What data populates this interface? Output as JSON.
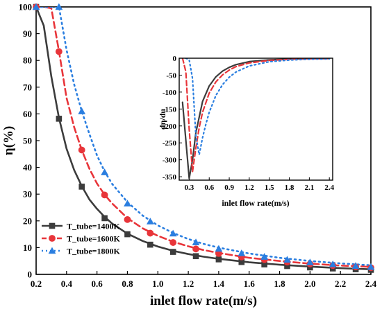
{
  "chart_data": [
    {
      "type": "line",
      "xlabel": "inlet flow rate(m/s)",
      "ylabel": "η(%)",
      "xlim": [
        0.2,
        2.4
      ],
      "ylim": [
        0,
        100
      ],
      "xticks": [
        "0.2",
        "0.4",
        "0.6",
        "0.8",
        "1.0",
        "1.2",
        "1.4",
        "1.6",
        "1.8",
        "2.0",
        "2.2",
        "2.4"
      ],
      "yticks": [
        "0",
        "10",
        "20",
        "30",
        "40",
        "50",
        "60",
        "70",
        "80",
        "90",
        "100"
      ],
      "legend_position": "bottom-left",
      "series": [
        {
          "name": "T_tube=1400K",
          "color": "#3c3c3c",
          "line_style": "solid",
          "marker": "square",
          "x": [
            0.2,
            0.25,
            0.3,
            0.35,
            0.4,
            0.45,
            0.5,
            0.55,
            0.6,
            0.65,
            0.7,
            0.8,
            0.9,
            1.0,
            1.1,
            1.2,
            1.3,
            1.4,
            1.6,
            1.8,
            2.0,
            2.2,
            2.4
          ],
          "y": [
            100,
            93,
            74,
            58.5,
            47,
            39,
            33,
            28,
            24.5,
            21.5,
            19,
            15.2,
            12.5,
            10.4,
            8.8,
            7.6,
            6.6,
            5.8,
            4.5,
            3.6,
            2.9,
            2.3,
            1.9
          ],
          "marker_x": [
            0.2,
            0.35,
            0.5,
            0.65,
            0.8,
            0.95,
            1.1,
            1.25,
            1.4,
            1.55,
            1.7,
            1.85,
            2.0,
            2.15,
            2.3,
            2.4
          ],
          "marker_y": [
            100,
            58.2,
            32.8,
            21,
            15,
            11.1,
            8.4,
            6.8,
            5.6,
            4.6,
            3.7,
            3.1,
            2.6,
            2.2,
            1.9,
            1.7
          ]
        },
        {
          "name": "T_tube=1600K",
          "color": "#e8353a",
          "line_style": "dashed",
          "marker": "circle",
          "x": [
            0.2,
            0.25,
            0.3,
            0.35,
            0.4,
            0.45,
            0.5,
            0.55,
            0.6,
            0.65,
            0.7,
            0.8,
            0.9,
            1.0,
            1.1,
            1.2,
            1.3,
            1.4,
            1.6,
            1.8,
            2.0,
            2.2,
            2.4
          ],
          "y": [
            100,
            100,
            99.5,
            83.5,
            66,
            55,
            46.5,
            39.5,
            34,
            29.8,
            26.5,
            21,
            17.2,
            14.4,
            12.2,
            10.5,
            9.1,
            8,
            6.2,
            5,
            4,
            3.3,
            2.8
          ],
          "marker_x": [
            0.2,
            0.35,
            0.5,
            0.65,
            0.8,
            0.95,
            1.1,
            1.25,
            1.4,
            1.55,
            1.7,
            1.85,
            2.0,
            2.15,
            2.3,
            2.4
          ],
          "marker_y": [
            100,
            83.3,
            46.5,
            29.7,
            20.5,
            15.4,
            11.9,
            9.5,
            7.8,
            6.5,
            5.5,
            4.6,
            3.9,
            3.3,
            2.8,
            2.5
          ]
        },
        {
          "name": "T_tube=1800K",
          "color": "#2a7ee0",
          "line_style": "dotted",
          "marker": "triangle",
          "x": [
            0.2,
            0.25,
            0.3,
            0.35,
            0.4,
            0.45,
            0.5,
            0.55,
            0.6,
            0.65,
            0.7,
            0.8,
            0.9,
            1.0,
            1.1,
            1.2,
            1.3,
            1.4,
            1.6,
            1.8,
            2.0,
            2.2,
            2.4
          ],
          "y": [
            100,
            100,
            100,
            100,
            84,
            71,
            61,
            52.5,
            44.5,
            38.5,
            33.8,
            27,
            22,
            18.3,
            15.5,
            13.2,
            11.4,
            10,
            7.8,
            6.2,
            5,
            4.1,
            3.4
          ],
          "marker_x": [
            0.2,
            0.35,
            0.5,
            0.65,
            0.8,
            0.95,
            1.1,
            1.25,
            1.4,
            1.55,
            1.7,
            1.85,
            2.0,
            2.15,
            2.3,
            2.4
          ],
          "marker_y": [
            100,
            100,
            61,
            38.2,
            26.5,
            19.8,
            15.3,
            12,
            9.6,
            7.9,
            6.6,
            5.5,
            4.5,
            3.8,
            3.2,
            2.8
          ]
        }
      ]
    },
    {
      "type": "line",
      "role": "inset",
      "xlabel": "inlet flow rate(m/s)",
      "ylabel": "dη/du",
      "xlim": [
        0.15,
        2.45
      ],
      "ylim": [
        -360,
        0
      ],
      "xticks": [
        "0.3",
        "0.6",
        "0.9",
        "1.2",
        "1.5",
        "1.8",
        "2.1",
        "2.4"
      ],
      "yticks": [
        "0",
        "-50",
        "-100",
        "-150",
        "-200",
        "-250",
        "-300",
        "-350"
      ],
      "series": [
        {
          "name": "T_tube=1400K",
          "color": "#3c3c3c",
          "line_style": "solid",
          "x": [
            0.2,
            0.3,
            0.35,
            0.4,
            0.5,
            0.6,
            0.7,
            0.8,
            0.9,
            1.0,
            1.2,
            1.5,
            1.8,
            2.1,
            2.4
          ],
          "y": [
            -130,
            -355,
            -300,
            -220,
            -128,
            -82,
            -55,
            -38,
            -27,
            -19,
            -10,
            -5,
            -2.5,
            -1.5,
            -1
          ]
        },
        {
          "name": "T_tube=1600K",
          "color": "#e8353a",
          "line_style": "dashed",
          "x": [
            0.2,
            0.25,
            0.3,
            0.35,
            0.4,
            0.45,
            0.5,
            0.6,
            0.7,
            0.8,
            0.9,
            1.0,
            1.2,
            1.5,
            1.8,
            2.1,
            2.4
          ],
          "y": [
            0,
            -40,
            -210,
            -335,
            -265,
            -205,
            -160,
            -103,
            -70,
            -49,
            -35,
            -25,
            -14,
            -6.5,
            -3.5,
            -2,
            -1.5
          ]
        },
        {
          "name": "T_tube=1800K",
          "color": "#2a7ee0",
          "line_style": "dotted",
          "x": [
            0.25,
            0.3,
            0.35,
            0.4,
            0.45,
            0.5,
            0.55,
            0.6,
            0.7,
            0.8,
            0.9,
            1.0,
            1.2,
            1.5,
            1.8,
            2.1,
            2.4
          ],
          "y": [
            0,
            -5,
            -60,
            -230,
            -285,
            -235,
            -195,
            -160,
            -110,
            -78,
            -56,
            -41,
            -23,
            -10.5,
            -5.5,
            -3,
            -2
          ]
        }
      ]
    }
  ]
}
